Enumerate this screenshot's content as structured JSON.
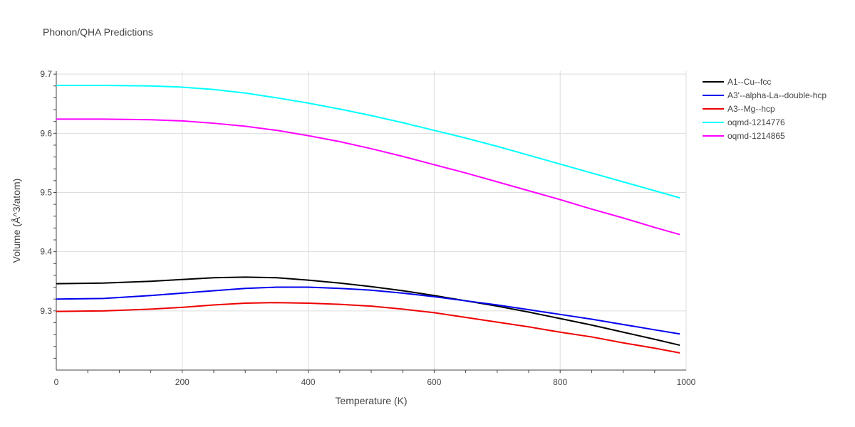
{
  "chart_data": {
    "type": "line",
    "title": "Phonon/QHA Predictions",
    "xlabel": "Temperature (K)",
    "ylabel": "Volume (Å^3/atom)",
    "xlim": [
      0,
      1000
    ],
    "ylim": [
      9.2,
      9.705
    ],
    "x_ticks": [
      0,
      200,
      400,
      600,
      800,
      1000
    ],
    "y_ticks": [
      9.3,
      9.4,
      9.5,
      9.6,
      9.7
    ],
    "grid": true,
    "legend_position": "top-right",
    "series": [
      {
        "name": "A1--Cu--fcc",
        "color": "#000000",
        "x": [
          0,
          75,
          150,
          200,
          250,
          300,
          350,
          400,
          450,
          500,
          550,
          600,
          650,
          700,
          750,
          800,
          850,
          900,
          950,
          990
        ],
        "y": [
          9.346,
          9.347,
          9.35,
          9.353,
          9.356,
          9.357,
          9.356,
          9.352,
          9.347,
          9.341,
          9.334,
          9.326,
          9.317,
          9.308,
          9.298,
          9.287,
          9.276,
          9.264,
          9.252,
          9.242
        ]
      },
      {
        "name": "A3'--alpha-La--double-hcp",
        "color": "#0000ee",
        "x": [
          0,
          75,
          150,
          200,
          250,
          300,
          350,
          400,
          450,
          500,
          550,
          600,
          650,
          700,
          750,
          800,
          850,
          900,
          950,
          990
        ],
        "y": [
          9.32,
          9.321,
          9.326,
          9.33,
          9.334,
          9.338,
          9.34,
          9.34,
          9.338,
          9.335,
          9.33,
          9.324,
          9.317,
          9.31,
          9.302,
          9.294,
          9.286,
          9.277,
          9.268,
          9.261
        ]
      },
      {
        "name": "A3--Mg--hcp",
        "color": "#ee0000",
        "x": [
          0,
          75,
          150,
          200,
          250,
          300,
          350,
          400,
          450,
          500,
          550,
          600,
          650,
          700,
          750,
          800,
          850,
          900,
          950,
          990
        ],
        "y": [
          9.299,
          9.3,
          9.303,
          9.306,
          9.31,
          9.313,
          9.314,
          9.313,
          9.311,
          9.308,
          9.303,
          9.297,
          9.289,
          9.281,
          9.273,
          9.264,
          9.256,
          9.246,
          9.237,
          9.229
        ]
      },
      {
        "name": "oqmd-1214776",
        "color": "#00ffff",
        "x": [
          0,
          75,
          150,
          200,
          250,
          300,
          350,
          400,
          450,
          500,
          550,
          600,
          650,
          700,
          750,
          800,
          850,
          900,
          950,
          990
        ],
        "y": [
          9.681,
          9.681,
          9.68,
          9.678,
          9.674,
          9.668,
          9.66,
          9.651,
          9.641,
          9.63,
          9.618,
          9.605,
          9.592,
          9.578,
          9.563,
          9.548,
          9.533,
          9.518,
          9.503,
          9.491
        ]
      },
      {
        "name": "oqmd-1214865",
        "color": "#ff00ff",
        "x": [
          0,
          75,
          150,
          200,
          250,
          300,
          350,
          400,
          450,
          500,
          550,
          600,
          650,
          700,
          750,
          800,
          850,
          900,
          950,
          990
        ],
        "y": [
          9.624,
          9.624,
          9.623,
          9.621,
          9.617,
          9.612,
          9.605,
          9.596,
          9.586,
          9.574,
          9.561,
          9.547,
          9.533,
          9.518,
          9.503,
          9.488,
          9.472,
          9.457,
          9.441,
          9.429
        ]
      }
    ]
  }
}
